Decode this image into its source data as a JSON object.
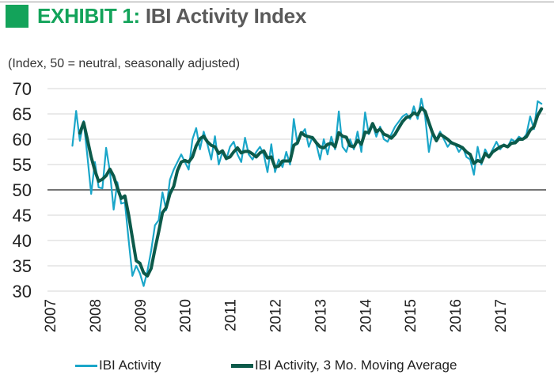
{
  "header": {
    "exhibit_label": "EXHIBIT 1:",
    "title_text": "IBI Activity Index",
    "subtitle": "(Index, 50 = neutral, seasonally adjusted)"
  },
  "colors": {
    "brand_green": "#13a35a",
    "series_light": "#1aa6c9",
    "series_dark": "#0c5a4a"
  },
  "chart_data": {
    "type": "line",
    "title": "EXHIBIT 1: IBI Activity Index",
    "subtitle": "(Index, 50 = neutral, seasonally adjusted)",
    "xlabel": "",
    "ylabel": "",
    "ylim": [
      30,
      70
    ],
    "xlim": [
      2007,
      2018
    ],
    "yticks": [
      30,
      35,
      40,
      45,
      50,
      55,
      60,
      65,
      70
    ],
    "xticks": [
      "2007",
      "2008",
      "2009",
      "2010",
      "2011",
      "2012",
      "2013",
      "2014",
      "2015",
      "2016",
      "2017"
    ],
    "reference_line": 50,
    "grid": true,
    "legend": "bottom",
    "frequency": "monthly",
    "start": "2007-07",
    "series": [
      {
        "name": "IBI Activity",
        "values": [
          58.7,
          65.6,
          59.7,
          63.6,
          56.7,
          49.2,
          55.5,
          50.5,
          50.3,
          58.3,
          53.6,
          46.1,
          51.5,
          47.3,
          47.5,
          40.0,
          33.0,
          35.0,
          33.5,
          31.0,
          34.0,
          38.0,
          43.0,
          44.0,
          49.5,
          46.0,
          52.0,
          54.0,
          55.5,
          57.0,
          55.5,
          54.0,
          60.0,
          62.2,
          58.0,
          61.5,
          59.0,
          56.0,
          60.6,
          55.0,
          57.5,
          56.0,
          58.5,
          59.5,
          57.0,
          55.5,
          60.3,
          57.0,
          56.0,
          57.5,
          58.5,
          57.0,
          53.5,
          59.0,
          53.5,
          56.0,
          54.5,
          57.5,
          55.0,
          64.0,
          59.0,
          61.0,
          62.0,
          58.5,
          60.5,
          59.0,
          56.0,
          60.0,
          57.0,
          60.5,
          58.0,
          65.5,
          58.5,
          57.5,
          60.0,
          58.0,
          61.5,
          57.5,
          65.3,
          61.0,
          63.0,
          60.5,
          62.5,
          60.0,
          59.5,
          61.0,
          62.5,
          63.5,
          64.5,
          65.0,
          64.0,
          66.5,
          64.0,
          68.0,
          64.5,
          57.5,
          61.5,
          60.0,
          61.5,
          60.0,
          58.5,
          59.5,
          59.0,
          57.5,
          58.5,
          56.5,
          56.0,
          53.0,
          58.5,
          55.0,
          58.0,
          56.5,
          58.0,
          59.5,
          58.0,
          59.0,
          58.5,
          60.0,
          59.5,
          60.5,
          60.0,
          61.0,
          64.5,
          62.0,
          67.5,
          67.0
        ]
      },
      {
        "name": "IBI Activity, 3 Mo. Moving Average",
        "start": "2007-09",
        "values": [
          61.2,
          63.3,
          60.0,
          56.5,
          53.8,
          51.7,
          52.1,
          52.8,
          54.1,
          52.7,
          50.4,
          48.3,
          48.8,
          45.0,
          40.5,
          36.0,
          35.5,
          33.6,
          33.0,
          34.5,
          38.3,
          41.7,
          45.5,
          46.5,
          49.2,
          50.7,
          53.8,
          55.5,
          55.8,
          55.5,
          56.5,
          58.7,
          60.1,
          60.6,
          59.5,
          58.8,
          58.5,
          57.2,
          57.7,
          56.2,
          56.5,
          57.5,
          58.3,
          57.3,
          57.6,
          57.6,
          57.1,
          56.5,
          57.3,
          57.7,
          56.3,
          56.5,
          54.5,
          54.7,
          55.7,
          55.7,
          55.7,
          58.8,
          59.3,
          61.3,
          60.7,
          60.5,
          60.3,
          59.3,
          58.5,
          58.3,
          59.0,
          59.2,
          58.5,
          61.3,
          60.6,
          60.4,
          58.7,
          58.5,
          59.8,
          59.0,
          61.4,
          61.3,
          63.1,
          61.5,
          62.0,
          61.0,
          60.7,
          60.2,
          61.0,
          62.3,
          63.5,
          64.3,
          64.5,
          65.2,
          64.8,
          66.2,
          65.5,
          63.3,
          61.2,
          59.7,
          61.0,
          60.5,
          60.0,
          59.3,
          59.0,
          58.7,
          58.3,
          57.5,
          57.0,
          55.2,
          55.8,
          55.5,
          57.2,
          56.5,
          57.5,
          58.0,
          58.5,
          58.8,
          58.5,
          59.2,
          59.3,
          60.0,
          60.0,
          60.5,
          61.8,
          62.5,
          64.7,
          66.0
        ]
      }
    ]
  },
  "legend": [
    {
      "label": "IBI Activity"
    },
    {
      "label": "IBI Activity, 3 Mo. Moving Average"
    }
  ]
}
